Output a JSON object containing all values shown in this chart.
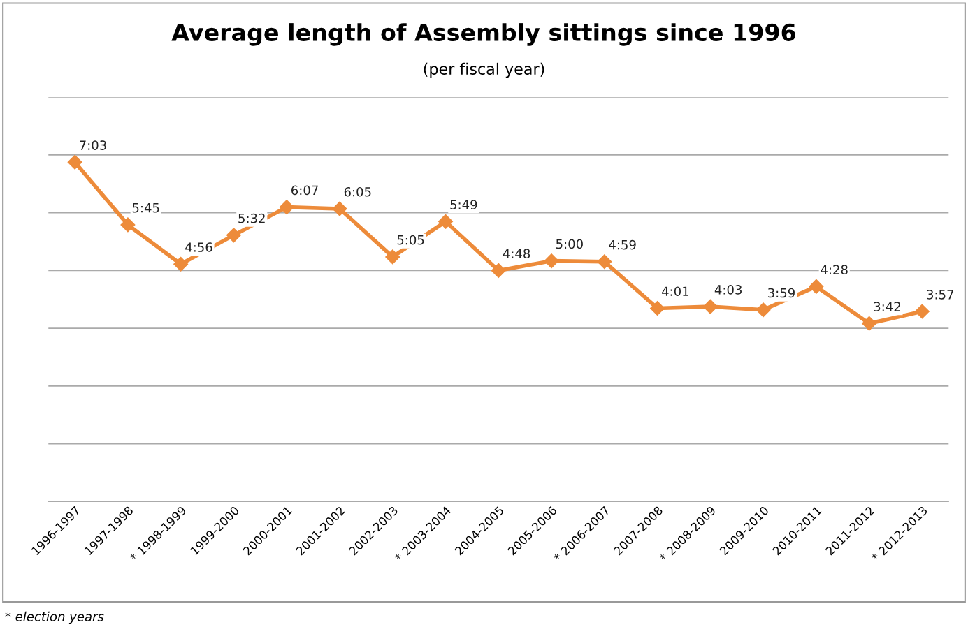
{
  "chart_data": {
    "type": "line",
    "title": "Average length of Assembly sittings since 1996",
    "subtitle": "(per fiscal year)",
    "categories": [
      "1996-1997",
      "1997-1998",
      "* 1998-1999",
      "1999-2000",
      "2000-2001",
      "2001-2002",
      "2002-2003",
      "* 2003-2004",
      "2004-2005",
      "2005-2006",
      "* 2006-2007",
      "2007-2008",
      "* 2008-2009",
      "2009-2010",
      "2010-2011",
      "2011-2012",
      "* 2012-2013"
    ],
    "series": [
      {
        "color": "#ed8b3a",
        "values": [
          7.05,
          5.75,
          4.9333,
          5.5333,
          6.1167,
          6.0833,
          5.0833,
          5.8167,
          4.8,
          5.0,
          4.9833,
          4.0167,
          4.05,
          3.9833,
          4.4667,
          3.7,
          3.95
        ],
        "value_labels": [
          "7:03",
          "5:45",
          "4:56",
          "5:32",
          "6:07",
          "6:05",
          "5:05",
          "5:49",
          "4:48",
          "5:00",
          "4:59",
          "4:01",
          "4:03",
          "3:59",
          "4:28",
          "3:42",
          "3:57"
        ]
      }
    ],
    "ylim": [
      0,
      8.4
    ],
    "yticks": [
      {
        "value": 0,
        "label": null
      },
      {
        "value": 1.2,
        "label": null
      },
      {
        "value": 2.4,
        "label": null
      },
      {
        "value": 3.6,
        "label": null
      },
      {
        "value": 4.8,
        "label": null
      },
      {
        "value": 6.0,
        "label": null
      },
      {
        "value": 7.2,
        "label": null
      },
      {
        "value": 8.4,
        "label": null
      }
    ],
    "grid": "y",
    "marker": "diamond",
    "line_style": "solid",
    "tick_labels": "x",
    "annotations": [
      "* election years"
    ]
  }
}
